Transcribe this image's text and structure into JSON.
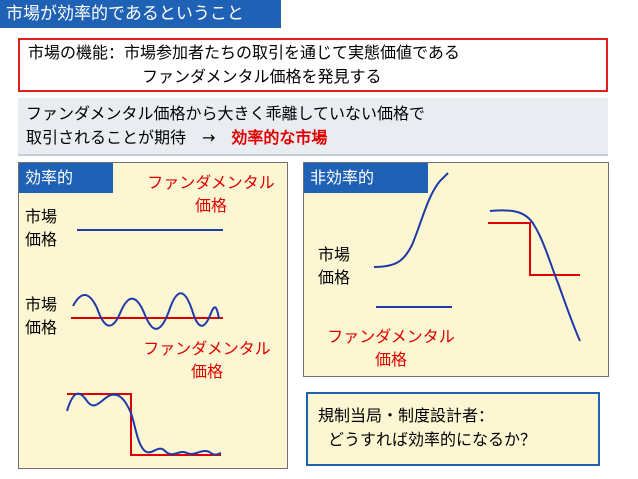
{
  "title": "市場が効率的であるということ",
  "market_function": {
    "line1": "市場の機能：市場参加者たちの取引を通じて実態価値である",
    "line2": "ファンダメンタル価格を発見する"
  },
  "expectation": {
    "line1": "ファンダメンタル価格から大きく乖離していない価格で",
    "line2_prefix": "取引されることが期待　→　",
    "line2_emphasis": "効率的な市場"
  },
  "left_panel": {
    "tag": "効率的",
    "fundamental_label_top": [
      "ファンダメンタル",
      "価格"
    ],
    "market_label_1": [
      "市場",
      "価格"
    ],
    "market_label_2": [
      "市場",
      "価格"
    ],
    "fundamental_label_bottom": [
      "ファンダメンタル",
      "価格"
    ]
  },
  "right_panel": {
    "tag": "非効率的",
    "market_label": [
      "市場",
      "価格"
    ],
    "fundamental_label": [
      "ファンダメンタル",
      "価格"
    ]
  },
  "regulator_box": {
    "line1": "規制当局・制度設計者：",
    "line2": "どうすれば効率的になるか？"
  },
  "colors": {
    "accent_blue": "#1f62b5",
    "fundamental_red": "#e00000",
    "market_line_blue": "#1f3aa8",
    "panel_bg": "#fcf7d2"
  }
}
